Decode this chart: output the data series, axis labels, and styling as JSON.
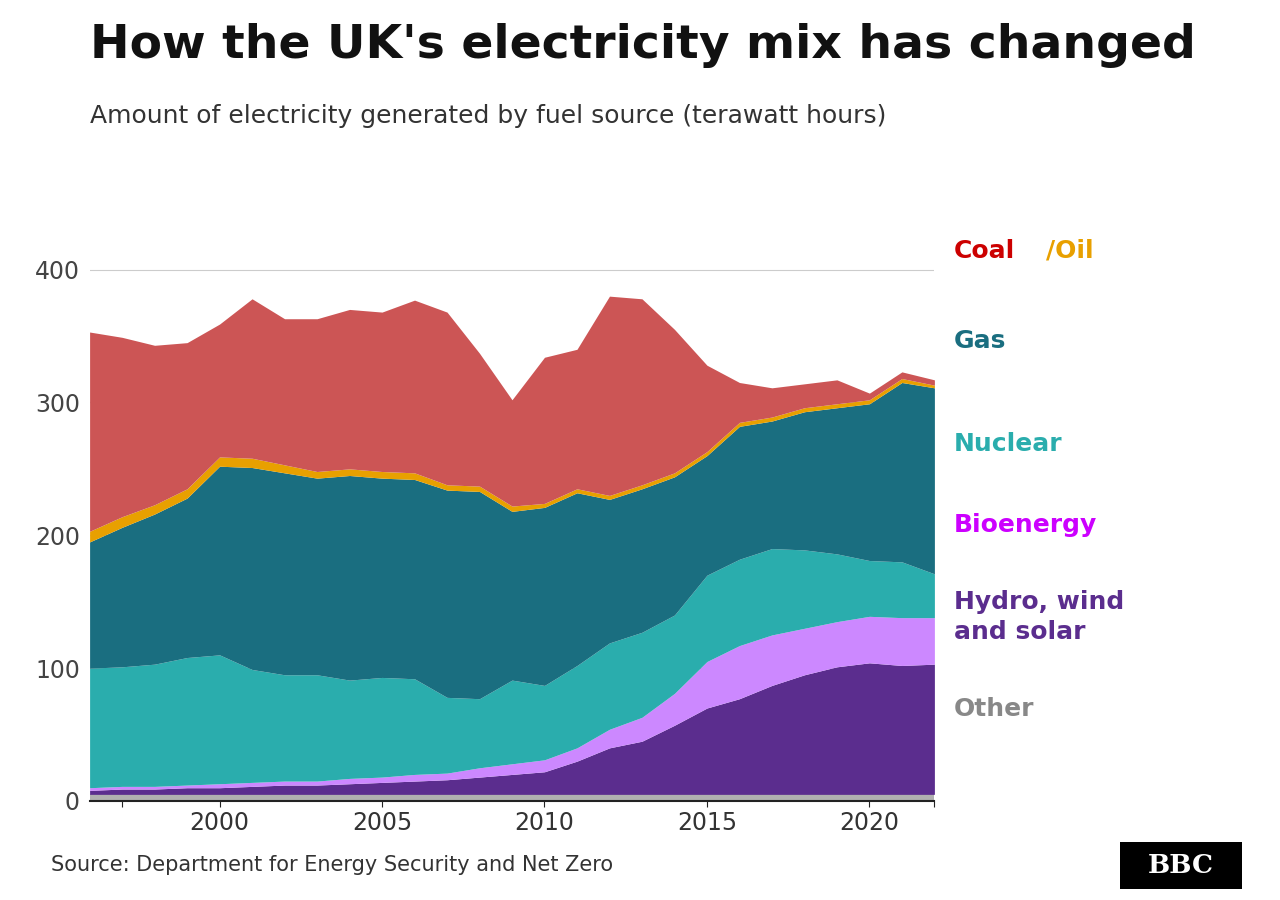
{
  "title": "How the UK's electricity mix has changed",
  "subtitle": "Amount of electricity generated by fuel source (terawatt hours)",
  "source": "Source: Department for Energy Security and Net Zero",
  "years": [
    1996,
    1997,
    1998,
    1999,
    2000,
    2001,
    2002,
    2003,
    2004,
    2005,
    2006,
    2007,
    2008,
    2009,
    2010,
    2011,
    2012,
    2013,
    2014,
    2015,
    2016,
    2017,
    2018,
    2019,
    2020,
    2021,
    2022
  ],
  "other": [
    5,
    5,
    5,
    5,
    5,
    5,
    5,
    5,
    5,
    5,
    5,
    5,
    5,
    5,
    5,
    5,
    5,
    5,
    5,
    5,
    5,
    5,
    5,
    5,
    5,
    5,
    5
  ],
  "hydro_wind_solar": [
    3,
    4,
    4,
    5,
    5,
    6,
    7,
    7,
    8,
    9,
    10,
    11,
    13,
    15,
    17,
    25,
    35,
    40,
    52,
    65,
    72,
    82,
    90,
    96,
    99,
    97,
    98
  ],
  "bioenergy": [
    2,
    2,
    2,
    2,
    3,
    3,
    3,
    3,
    4,
    4,
    5,
    5,
    7,
    8,
    9,
    10,
    14,
    18,
    24,
    35,
    40,
    38,
    35,
    34,
    35,
    36,
    35
  ],
  "nuclear": [
    90,
    90,
    92,
    96,
    97,
    85,
    80,
    80,
    74,
    75,
    72,
    57,
    52,
    63,
    56,
    62,
    65,
    64,
    59,
    65,
    65,
    65,
    59,
    51,
    42,
    42,
    33
  ],
  "gas": [
    95,
    105,
    113,
    120,
    142,
    152,
    152,
    148,
    154,
    150,
    150,
    156,
    156,
    127,
    134,
    130,
    108,
    108,
    104,
    90,
    100,
    96,
    104,
    110,
    118,
    135,
    140
  ],
  "oil": [
    8,
    8,
    7,
    7,
    7,
    7,
    6,
    5,
    5,
    5,
    5,
    4,
    4,
    4,
    3,
    3,
    3,
    3,
    3,
    3,
    3,
    3,
    3,
    3,
    3,
    3,
    2
  ],
  "coal": [
    150,
    135,
    120,
    110,
    100,
    120,
    110,
    115,
    120,
    120,
    130,
    130,
    100,
    80,
    110,
    105,
    150,
    140,
    108,
    65,
    30,
    22,
    18,
    18,
    5,
    5,
    4
  ],
  "colors": {
    "other": "#b0b0b0",
    "hydro_wind_solar": "#5b2d8e",
    "bioenergy": "#cc88ff",
    "nuclear": "#2aadad",
    "gas": "#1a6e80",
    "oil": "#e8a000",
    "coal": "#cc5555"
  },
  "ylim": [
    0,
    420
  ],
  "yticks": [
    0,
    100,
    200,
    300,
    400
  ],
  "background_color": "#ffffff",
  "title_fontsize": 34,
  "subtitle_fontsize": 18,
  "tick_fontsize": 17,
  "legend_fontsize": 18,
  "source_fontsize": 15
}
